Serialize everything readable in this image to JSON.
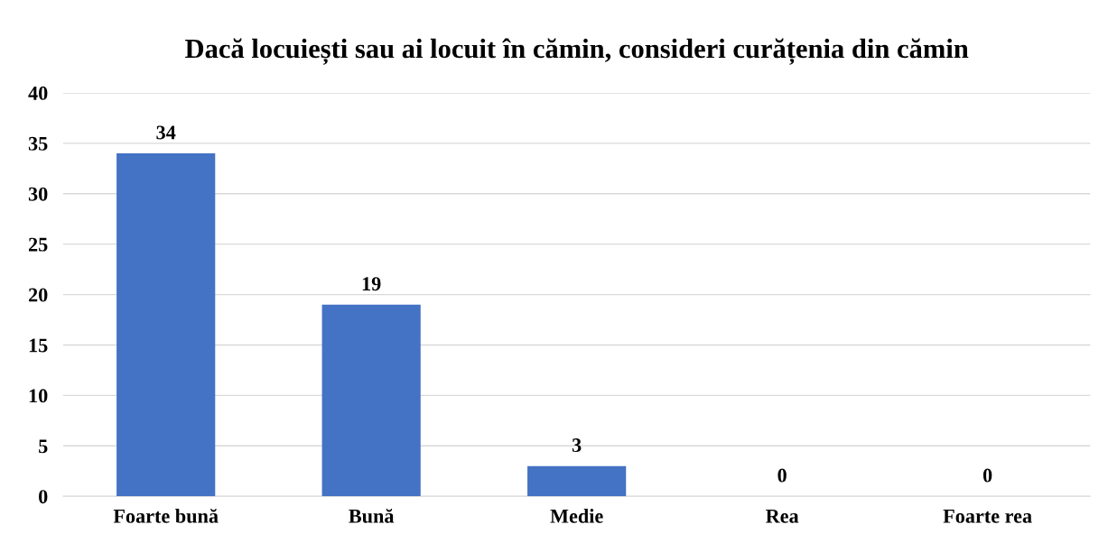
{
  "chart_data": {
    "type": "bar",
    "title": "Dacă locuiești sau ai locuit în cămin, consideri curățenia din cămin",
    "categories": [
      "Foarte bună",
      "Bună",
      "Medie",
      "Rea",
      "Foarte rea"
    ],
    "values": [
      34,
      19,
      3,
      0,
      0
    ],
    "color": "#4472c4",
    "ylim": [
      0,
      40
    ],
    "yticks": [
      0,
      5,
      10,
      15,
      20,
      25,
      30,
      35,
      40
    ],
    "grid": "y",
    "data_labels": true
  }
}
